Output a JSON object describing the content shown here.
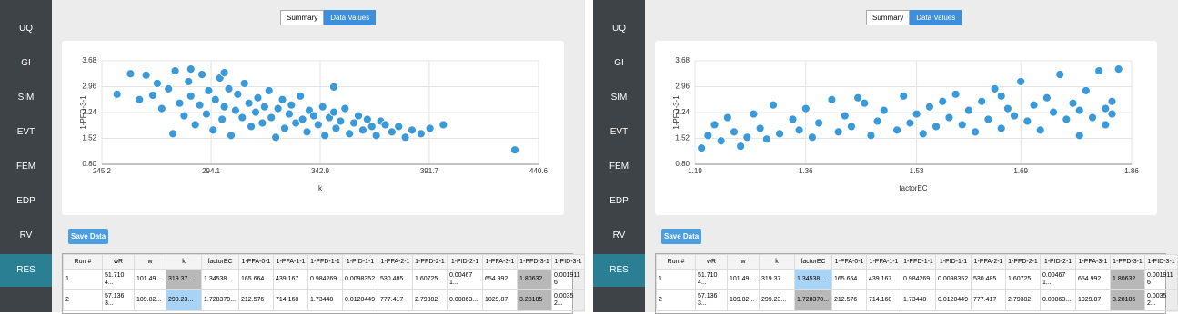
{
  "sidebar": [
    "UQ",
    "GI",
    "SIM",
    "EVT",
    "FEM",
    "EDP",
    "RV",
    "RES"
  ],
  "tabs": [
    "Summary",
    "Data Values"
  ],
  "button": "Save Data",
  "table": {
    "columns": [
      "Run #",
      "wR",
      "w",
      "k",
      "factorEC",
      "1-PFA-0-1",
      "1-PFA-1-1",
      "1-PFD-1-1",
      "1-PID-1-1",
      "1-PFA-2-1",
      "1-PFD-2-1",
      "1-PID-2-1",
      "1-PFA-3-1",
      "1-PFD-3-1",
      "1-PID-3-1"
    ],
    "rows": [
      [
        "1",
        "51.7104...",
        "101.49...",
        "319.37...",
        "1.34538...",
        "165.664",
        "439.167",
        "0.984269",
        "0.0098352",
        "530.485",
        "1.60725",
        "0.004671...",
        "654.992",
        "1.80632",
        "0.0019116"
      ],
      [
        "2",
        "57.1363...",
        "109.82...",
        "299.23...",
        "1.728370...",
        "212.576",
        "714.168",
        "1.73448",
        "0.0120449",
        "777.417",
        "2.79382",
        "0.00863...",
        "1029.87",
        "3.28185",
        "0.00352..."
      ]
    ]
  },
  "chart_data": [
    {
      "type": "scatter",
      "xlabel": "k",
      "ylabel": "1-PFD-3-1",
      "color": "#3a9ad9",
      "grid": true,
      "xlim": [
        245.2,
        440.6
      ],
      "xticks": [
        245.2,
        294.1,
        342.9,
        391.7,
        440.6
      ],
      "ylim": [
        0.8,
        3.68
      ],
      "yticks": [
        {
          "value": 0.8,
          "label": "0.80"
        },
        1.52,
        2.24,
        2.96,
        3.68
      ],
      "x": [
        252,
        258,
        262,
        265,
        268,
        270,
        272,
        275,
        277,
        278,
        280,
        282,
        284,
        285,
        287,
        289,
        290,
        292,
        293,
        295,
        296,
        298,
        299,
        300,
        302,
        303,
        305,
        306,
        308,
        309,
        311,
        312,
        314,
        315,
        317,
        318,
        320,
        321,
        323,
        324,
        326,
        327,
        329,
        330,
        332,
        334,
        335,
        337,
        338,
        340,
        342,
        344,
        345,
        347,
        349,
        350,
        352,
        354,
        356,
        358,
        360,
        362,
        364,
        366,
        368,
        370,
        372,
        375,
        378,
        381,
        384,
        388,
        392,
        349,
        285,
        300,
        398,
        430
      ],
      "values": [
        2.75,
        3.32,
        2.6,
        3.28,
        2.72,
        3.05,
        2.35,
        2.9,
        1.65,
        3.4,
        2.5,
        2.15,
        3.1,
        2.7,
        1.9,
        2.45,
        3.3,
        2.2,
        2.85,
        1.75,
        2.6,
        3.2,
        2.05,
        2.4,
        2.9,
        1.6,
        2.3,
        2.75,
        2.1,
        3.05,
        2.5,
        1.85,
        2.25,
        2.65,
        1.95,
        2.4,
        2.85,
        2.1,
        1.55,
        2.35,
        2.6,
        1.8,
        2.2,
        2.45,
        1.95,
        2.7,
        2.05,
        1.7,
        2.3,
        2.15,
        1.9,
        2.4,
        1.6,
        2.1,
        2.25,
        1.8,
        2.0,
        2.35,
        1.65,
        1.95,
        2.15,
        1.75,
        2.05,
        1.85,
        1.6,
        2.0,
        1.9,
        1.7,
        1.85,
        1.55,
        1.75,
        1.65,
        1.8,
        2.95,
        3.45,
        3.35,
        1.9,
        1.2
      ]
    },
    {
      "type": "scatter",
      "xlabel": "factorEC",
      "ylabel": "1-PFD-3-1",
      "color": "#3a9ad9",
      "grid": true,
      "xlim": [
        1.19,
        1.86
      ],
      "xticks": [
        1.19,
        1.36,
        1.53,
        1.69,
        1.86
      ],
      "ylim": [
        0.8,
        3.68
      ],
      "yticks": [
        {
          "value": 0.8,
          "label": "0.80"
        },
        1.52,
        2.24,
        2.96,
        3.68
      ],
      "x": [
        1.2,
        1.21,
        1.22,
        1.23,
        1.24,
        1.25,
        1.27,
        1.28,
        1.29,
        1.3,
        1.31,
        1.32,
        1.34,
        1.35,
        1.36,
        1.37,
        1.38,
        1.4,
        1.41,
        1.42,
        1.43,
        1.45,
        1.46,
        1.47,
        1.48,
        1.5,
        1.51,
        1.52,
        1.53,
        1.54,
        1.55,
        1.56,
        1.58,
        1.59,
        1.6,
        1.61,
        1.62,
        1.63,
        1.64,
        1.65,
        1.66,
        1.67,
        1.68,
        1.69,
        1.7,
        1.71,
        1.72,
        1.73,
        1.74,
        1.75,
        1.76,
        1.77,
        1.78,
        1.79,
        1.8,
        1.81,
        1.82,
        1.83,
        1.84,
        1.83,
        1.82,
        1.78,
        1.26,
        1.44,
        1.57,
        1.66
      ],
      "values": [
        1.25,
        1.6,
        1.9,
        1.45,
        2.1,
        1.7,
        1.55,
        2.2,
        1.8,
        1.5,
        2.45,
        1.65,
        2.05,
        1.75,
        2.35,
        1.55,
        1.95,
        2.6,
        1.7,
        2.15,
        1.85,
        2.5,
        1.6,
        2.0,
        2.3,
        1.75,
        2.7,
        1.95,
        2.2,
        1.65,
        2.4,
        1.85,
        2.1,
        2.75,
        1.9,
        2.3,
        1.7,
        2.55,
        2.05,
        2.9,
        1.8,
        2.35,
        2.15,
        3.1,
        2.0,
        2.45,
        1.75,
        2.65,
        2.25,
        3.3,
        2.05,
        2.5,
        2.3,
        2.85,
        2.1,
        3.4,
        2.35,
        2.2,
        3.45,
        2.55,
        1.9,
        1.6,
        1.3,
        2.65,
        2.55,
        2.7
      ]
    }
  ]
}
